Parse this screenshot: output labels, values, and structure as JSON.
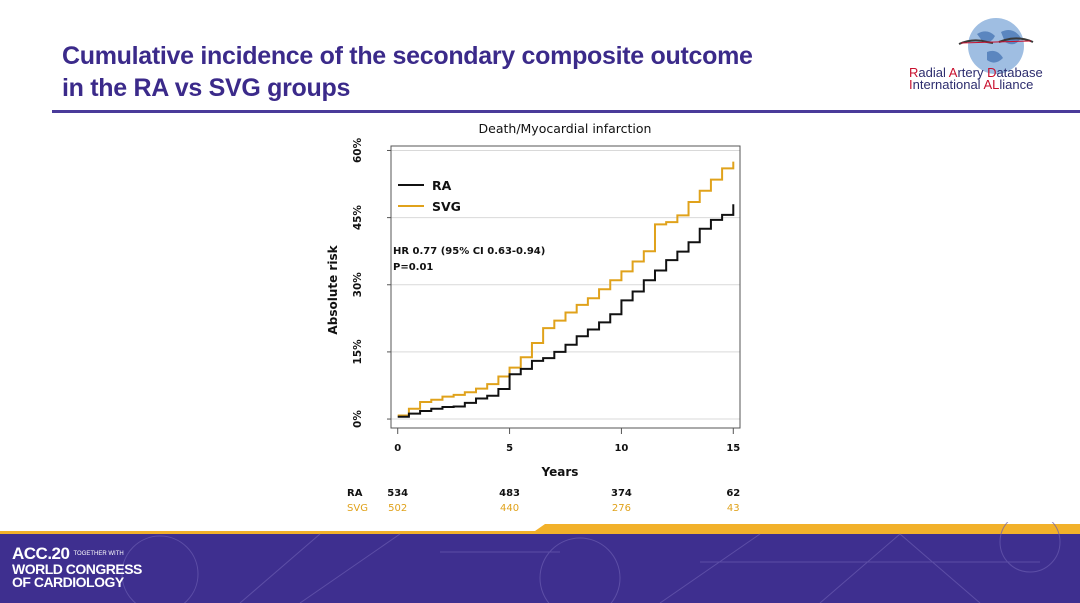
{
  "slide": {
    "title_line1": "Cumulative incidence of the secondary composite outcome",
    "title_line2": "in the RA vs SVG groups"
  },
  "logo": {
    "line1": [
      {
        "text": "R",
        "accent": true
      },
      {
        "text": "adial ",
        "accent": false
      },
      {
        "text": "A",
        "accent": true
      },
      {
        "text": "rtery ",
        "accent": false
      },
      {
        "text": "D",
        "accent": true
      },
      {
        "text": "atabase",
        "accent": false
      }
    ],
    "line2": [
      {
        "text": "I",
        "accent": true
      },
      {
        "text": "nternational ",
        "accent": false
      },
      {
        "text": "AL",
        "accent": true
      },
      {
        "text": "liance",
        "accent": false
      }
    ]
  },
  "footer": {
    "acc_line1": "ACC.20",
    "acc_together": "TOGETHER WITH",
    "acc_line2": "WORLD CONGRESS",
    "acc_line3": "OF CARDIOLOGY"
  },
  "colors": {
    "title": "#3b2a8a",
    "ra": "#111111",
    "svg": "#e0a21b",
    "footer_bg": "#3e2f8f",
    "footer_stripe": "#f2b12a"
  },
  "chart_data": {
    "type": "line",
    "title": "Death/Myocardial infarction",
    "xlabel": "Years",
    "ylabel": "Absolute risk",
    "xlim": [
      -0.3,
      15.3
    ],
    "ylim": [
      -2,
      61
    ],
    "x_ticks": [
      0,
      5,
      10,
      15
    ],
    "y_ticks": [
      0,
      15,
      30,
      45,
      60
    ],
    "y_tick_labels": [
      "0%",
      "15%",
      "30%",
      "45%",
      "60%"
    ],
    "grid": true,
    "legend_position": "top-left",
    "annotation_line1": "HR 0.77 (95% CI 0.63-0.94)",
    "annotation_line2": "P=0.01",
    "series": [
      {
        "name": "RA",
        "x": [
          0,
          0.5,
          1,
          1.5,
          2,
          2.5,
          3,
          3.5,
          4,
          4.5,
          5,
          5.5,
          6,
          6.5,
          7,
          7.5,
          8,
          8.5,
          9,
          9.5,
          10,
          10.5,
          11,
          11.5,
          12,
          12.5,
          13,
          13.5,
          14,
          14.5,
          15
        ],
        "y": [
          0.5,
          1.2,
          1.8,
          2.3,
          2.7,
          2.8,
          3.6,
          4.6,
          5.2,
          6.7,
          10.0,
          11.2,
          13.0,
          13.6,
          15.0,
          16.6,
          18.5,
          20.0,
          21.6,
          23.4,
          26.5,
          28.5,
          31.0,
          33.2,
          35.5,
          37.4,
          39.5,
          42.5,
          44.5,
          45.6,
          48.0
        ]
      },
      {
        "name": "SVG",
        "x": [
          0,
          0.5,
          1,
          1.5,
          2,
          2.5,
          3,
          3.5,
          4,
          4.5,
          5,
          5.5,
          6,
          6.5,
          7,
          7.5,
          8,
          8.5,
          9,
          9.5,
          10,
          10.5,
          11,
          11.5,
          12,
          12.5,
          13,
          13.5,
          14,
          14.5,
          15
        ],
        "y": [
          0.8,
          2.3,
          3.8,
          4.3,
          5.0,
          5.4,
          6.0,
          6.8,
          7.8,
          9.5,
          11.5,
          13.8,
          17.0,
          20.3,
          22.0,
          23.8,
          25.5,
          27.0,
          29.0,
          31.0,
          33.0,
          35.2,
          37.5,
          43.5,
          44.0,
          45.5,
          48.5,
          51.0,
          53.5,
          56.0,
          57.5
        ]
      }
    ],
    "at_risk": {
      "x": [
        0,
        5,
        10,
        15
      ],
      "rows": [
        {
          "label": "RA",
          "values": [
            "534",
            "483",
            "374",
            "62"
          ]
        },
        {
          "label": "SVG",
          "values": [
            "502",
            "440",
            "276",
            "43"
          ]
        }
      ]
    }
  }
}
